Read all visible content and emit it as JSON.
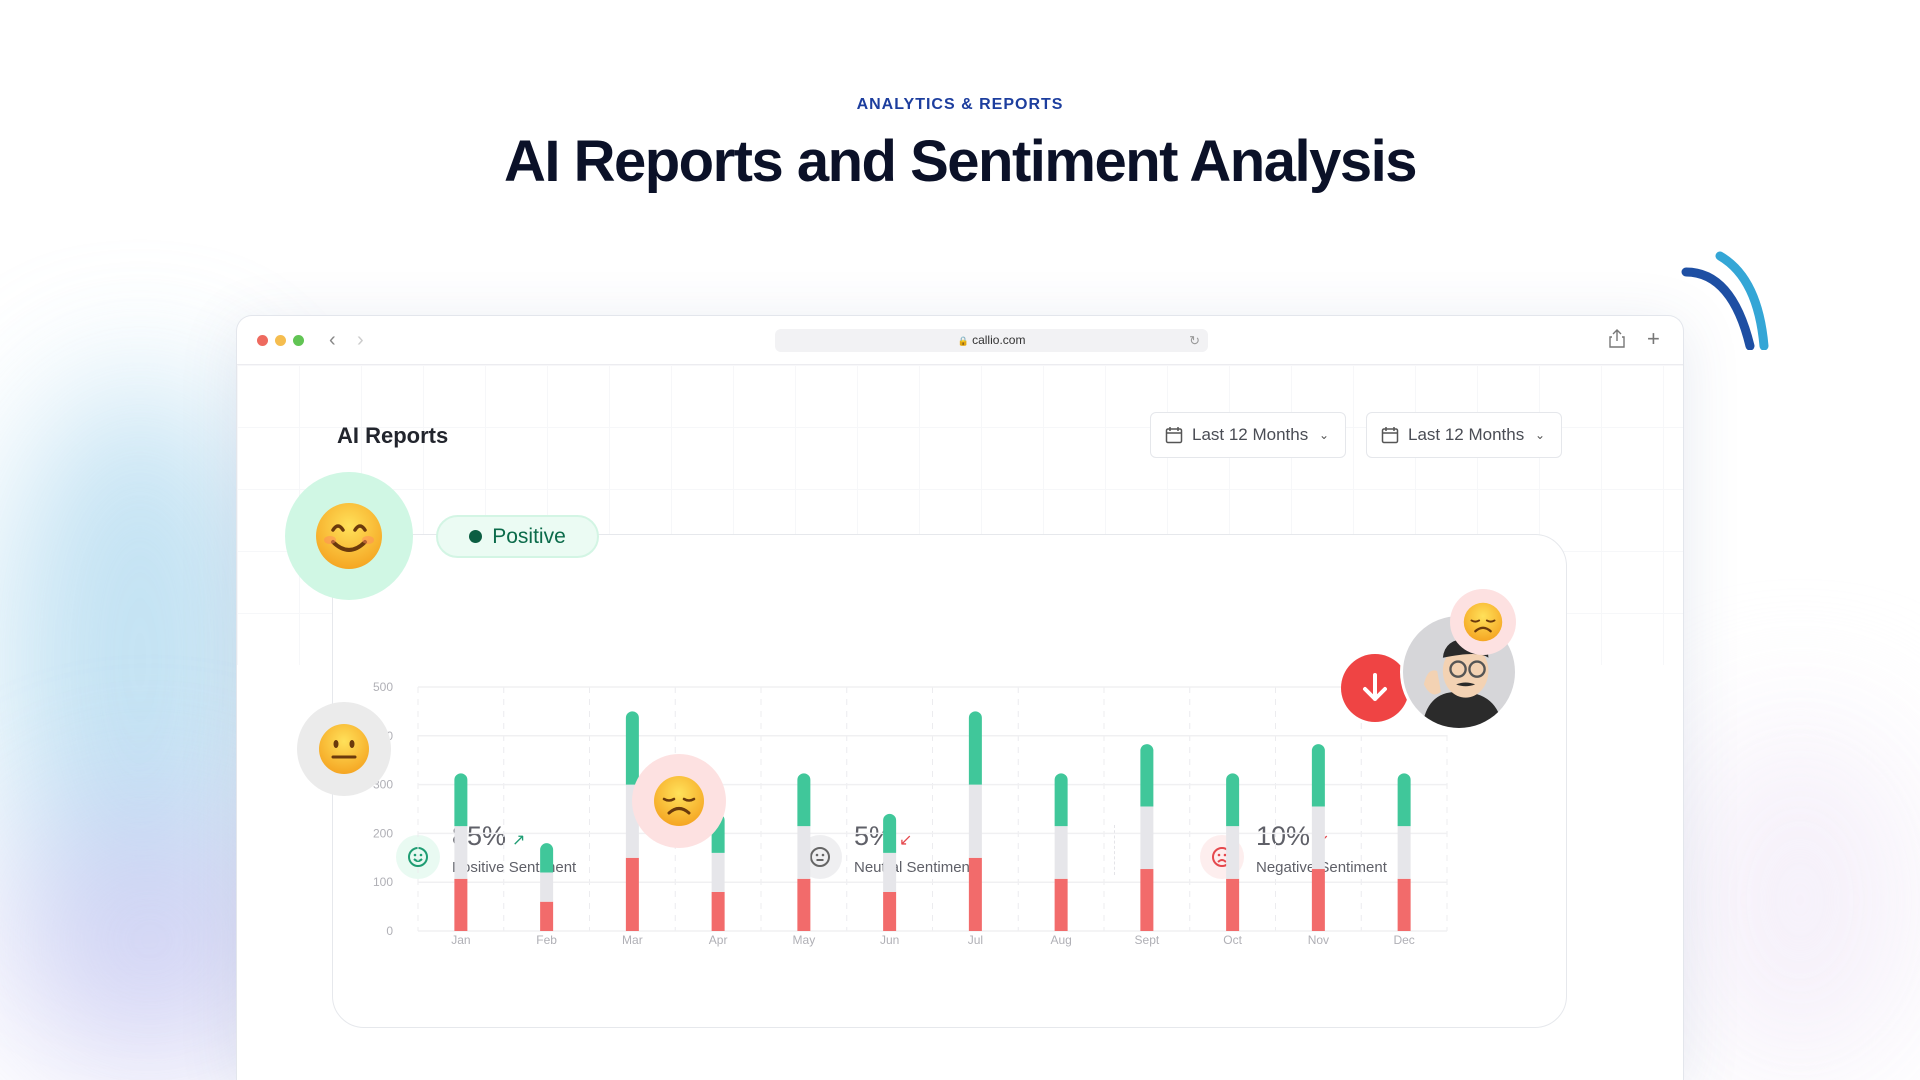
{
  "header": {
    "eyebrow": "ANALYTICS & REPORTS",
    "title": "AI Reports and Sentiment Analysis"
  },
  "browser": {
    "url": "callio.com",
    "controls": [
      "close",
      "minimize",
      "maximize"
    ]
  },
  "page": {
    "title": "AI Reports",
    "filters": [
      {
        "label": "Last 12 Months",
        "icon": "calendar-icon"
      },
      {
        "label": "Last 12 Months",
        "icon": "calendar-icon"
      }
    ],
    "badge": {
      "label": "Positive",
      "color": "#0b6b4a"
    },
    "stats": [
      {
        "value": "85%",
        "label": "Positive Sentiment",
        "trend": "up",
        "color": "#1f9d73"
      },
      {
        "value": "5%",
        "label": "Neutral Sentiment",
        "trend": "down",
        "color": "#e5484d"
      },
      {
        "value": "10%",
        "label": "Negative Sentiment",
        "trend": "down",
        "color": "#e5484d"
      }
    ]
  },
  "colors": {
    "positive": "#40c79a",
    "neutral": "#e6e6ea",
    "negative": "#f26b6b",
    "accent": "#1d3e9e"
  },
  "chart_data": {
    "type": "bar",
    "stacked": true,
    "categories": [
      "Jan",
      "Feb",
      "Mar",
      "Apr",
      "May",
      "Jun",
      "Jul",
      "Aug",
      "Sept",
      "Oct",
      "Nov",
      "Dec"
    ],
    "series": [
      {
        "values": [
          107,
          60,
          150,
          80,
          107,
          80,
          150,
          107,
          127,
          107,
          127,
          107
        ],
        "color": "#f26b6b"
      },
      {
        "values": [
          108,
          60,
          150,
          80,
          108,
          80,
          150,
          108,
          128,
          108,
          128,
          108
        ],
        "color": "#e6e6ea"
      },
      {
        "values": [
          108,
          60,
          150,
          80,
          108,
          80,
          150,
          108,
          128,
          108,
          128,
          108
        ],
        "color": "#40c79a"
      }
    ],
    "yticks": [
      "0",
      "100",
      "200",
      "300",
      "400",
      "500"
    ],
    "ylim": [
      0,
      500
    ],
    "grid": true
  }
}
